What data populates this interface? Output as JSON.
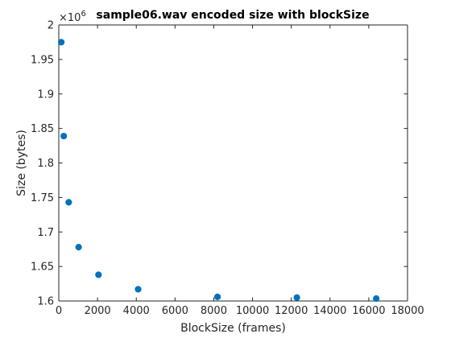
{
  "chart_data": {
    "type": "scatter",
    "title": "sample06.wav encoded size with blockSize",
    "xlabel": "BlockSize (frames)",
    "ylabel": "Size (bytes)",
    "xlim": [
      0,
      18000
    ],
    "ylim": [
      1600000,
      2000000
    ],
    "x_ticks": [
      0,
      2000,
      4000,
      6000,
      8000,
      10000,
      12000,
      14000,
      16000,
      18000
    ],
    "x_tick_labels": [
      "0",
      "2000",
      "4000",
      "6000",
      "8000",
      "10000",
      "12000",
      "14000",
      "16000",
      "18000"
    ],
    "y_ticks": [
      1600000,
      1650000,
      1700000,
      1750000,
      1800000,
      1850000,
      1900000,
      1950000,
      2000000
    ],
    "y_tick_labels": [
      "1.6",
      "1.65",
      "1.7",
      "1.75",
      "1.8",
      "1.85",
      "1.9",
      "1.95",
      "2"
    ],
    "y_exponent_label": "×10",
    "y_exponent_power": "6",
    "grid": false,
    "marker_color": "#0072BD",
    "points": [
      {
        "x": 128,
        "y": 1975000
      },
      {
        "x": 256,
        "y": 1839000
      },
      {
        "x": 512,
        "y": 1743000
      },
      {
        "x": 1024,
        "y": 1678000
      },
      {
        "x": 2048,
        "y": 1638000
      },
      {
        "x": 4096,
        "y": 1617000
      },
      {
        "x": 8192,
        "y": 1606000
      },
      {
        "x": 12288,
        "y": 1605000
      },
      {
        "x": 16384,
        "y": 1603500
      }
    ]
  }
}
